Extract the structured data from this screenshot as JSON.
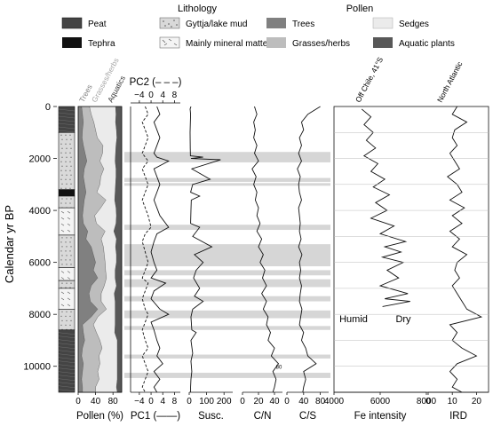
{
  "legend": {
    "lithology_title": "Lithology",
    "pollen_title": "Pollen",
    "lithology": [
      {
        "key": "peat",
        "label": "Peat"
      },
      {
        "key": "tephra",
        "label": "Tephra"
      },
      {
        "key": "gyttja",
        "label": "Gyttja/lake mud"
      },
      {
        "key": "mineral",
        "label": "Mainly mineral matter"
      }
    ],
    "pollen": [
      {
        "key": "trees",
        "label": "Trees",
        "color": "#808080"
      },
      {
        "key": "grasses",
        "label": "Grasses/herbs",
        "color": "#bdbdbd"
      },
      {
        "key": "sedges",
        "label": "Sedges",
        "color": "#ebebeb"
      },
      {
        "key": "aquatic",
        "label": "Aquatic plants",
        "color": "#585858"
      }
    ]
  },
  "y_axis_label": "Calendar yr BP",
  "highlight_bands": [
    [
      1750,
      2150
    ],
    [
      2750,
      2900
    ],
    [
      2950,
      3050
    ],
    [
      4550,
      4750
    ],
    [
      5300,
      6150
    ],
    [
      6300,
      6500
    ],
    [
      6650,
      6950
    ],
    [
      7300,
      7500
    ],
    [
      7850,
      8150
    ],
    [
      8450,
      8600
    ],
    [
      9550,
      9700
    ],
    [
      10250,
      10450
    ]
  ],
  "chart_data": [
    {
      "type": "area",
      "panel": "pollen",
      "xlabel": "Pollen (%)",
      "column_labels": [
        "Trees",
        "Grasses/herbs",
        "Aquatics"
      ],
      "x_ticks": [
        "0",
        "40",
        "80"
      ],
      "xlim": [
        0,
        100
      ],
      "ylim": [
        0,
        11000
      ],
      "y_ticks": [
        "0",
        "2000",
        "4000",
        "6000",
        "8000",
        "10000"
      ],
      "depth": [
        0,
        300,
        600,
        900,
        1200,
        1500,
        1800,
        2100,
        2400,
        2700,
        3000,
        3300,
        3600,
        3900,
        4200,
        4500,
        4800,
        5100,
        5400,
        5700,
        6000,
        6300,
        6600,
        6900,
        7200,
        7500,
        7800,
        8100,
        8400,
        8700,
        9000,
        9300,
        9600,
        9900,
        10200,
        10500,
        10800,
        11000
      ],
      "series": [
        {
          "name": "Trees",
          "values": [
            8,
            10,
            12,
            10,
            9,
            12,
            16,
            20,
            14,
            12,
            15,
            18,
            14,
            12,
            10,
            12,
            22,
            18,
            30,
            35,
            40,
            35,
            45,
            30,
            25,
            28,
            45,
            30,
            10,
            12,
            15,
            10,
            8,
            12,
            10,
            8,
            10,
            10
          ]
        },
        {
          "name": "Grasses/herbs",
          "values": [
            18,
            20,
            24,
            30,
            35,
            45,
            40,
            30,
            45,
            40,
            35,
            25,
            50,
            40,
            28,
            30,
            40,
            35,
            28,
            25,
            22,
            28,
            20,
            30,
            28,
            25,
            20,
            15,
            25,
            30,
            35,
            45,
            40,
            38,
            35,
            40,
            30,
            30
          ]
        },
        {
          "name": "Sedges",
          "values": [
            60,
            57,
            50,
            48,
            45,
            30,
            30,
            35,
            28,
            35,
            36,
            42,
            20,
            35,
            50,
            45,
            20,
            35,
            28,
            28,
            26,
            22,
            20,
            28,
            30,
            32,
            20,
            40,
            50,
            42,
            40,
            35,
            42,
            40,
            45,
            42,
            48,
            50
          ]
        },
        {
          "name": "Aquatics",
          "values": [
            14,
            13,
            14,
            12,
            11,
            13,
            14,
            15,
            13,
            13,
            14,
            15,
            16,
            13,
            12,
            13,
            18,
            12,
            14,
            12,
            12,
            15,
            15,
            12,
            17,
            15,
            15,
            15,
            15,
            16,
            10,
            10,
            10,
            10,
            10,
            10,
            12,
            10
          ]
        }
      ]
    },
    {
      "type": "line",
      "panel": "pc",
      "xlabel": "PC1 (——)",
      "top_label": "PC2 (– – –)",
      "x_ticks": [
        "−4",
        "0",
        "4",
        "8"
      ],
      "top_ticks": [
        "−4",
        "0",
        "4",
        "8"
      ],
      "xlim": [
        -7,
        10
      ],
      "series": [
        {
          "name": "PC1",
          "x": [
            2,
            3,
            1,
            2,
            3,
            2,
            1,
            2,
            6,
            1,
            2,
            3,
            2,
            1,
            2,
            3,
            6,
            2,
            1,
            0,
            1,
            2,
            0,
            5,
            1,
            0,
            3,
            6,
            0,
            1,
            2,
            3,
            2,
            4,
            1,
            3,
            1,
            2
          ],
          "y": [
            0,
            300,
            600,
            900,
            1200,
            1500,
            1800,
            1950,
            2100,
            2400,
            2700,
            3000,
            3300,
            3600,
            3900,
            4200,
            4650,
            4900,
            5200,
            5600,
            6000,
            6300,
            6600,
            6800,
            7100,
            7400,
            7800,
            8000,
            8300,
            8600,
            9000,
            9300,
            9600,
            9900,
            10200,
            10500,
            10800,
            11000
          ]
        },
        {
          "name": "PC2",
          "dashed": true,
          "x": [
            -2,
            -1,
            -3,
            -2,
            -1,
            -2,
            -3,
            -2,
            -1,
            -3,
            -2,
            -1,
            -2,
            -3,
            -2,
            -1,
            0,
            -2,
            -3,
            -2,
            -1,
            -2,
            -3,
            -1,
            -2,
            -3,
            -2,
            -1,
            -2,
            -3,
            -2,
            -1,
            -3,
            -2,
            -1,
            -2,
            -3,
            -2
          ],
          "y": [
            0,
            300,
            600,
            900,
            1200,
            1500,
            1800,
            1950,
            2100,
            2400,
            2700,
            3000,
            3300,
            3600,
            3900,
            4200,
            4650,
            4900,
            5200,
            5600,
            6000,
            6300,
            6600,
            6800,
            7100,
            7400,
            7800,
            8000,
            8300,
            8600,
            9000,
            9300,
            9600,
            9900,
            10200,
            10500,
            10800,
            11000
          ]
        }
      ]
    },
    {
      "type": "line",
      "panel": "susc",
      "xlabel": "Susc.",
      "x_ticks": [
        "0",
        "100",
        "200"
      ],
      "xlim": [
        0,
        250
      ],
      "series": [
        {
          "name": "Susc.",
          "x": [
            10,
            5,
            6,
            8,
            5,
            6,
            7,
            80,
            10,
            180,
            15,
            120,
            20,
            8,
            60,
            12,
            10,
            8,
            60,
            20,
            130,
            30,
            80,
            40,
            25,
            60,
            30,
            80,
            20,
            10,
            15,
            40,
            10,
            20,
            10,
            15,
            10,
            8,
            8
          ],
          "y": [
            0,
            100,
            150,
            300,
            1000,
            1600,
            1900,
            1950,
            2000,
            2050,
            2400,
            2800,
            3000,
            3300,
            3450,
            3600,
            4000,
            4500,
            4650,
            5000,
            5400,
            5700,
            6000,
            6300,
            6600,
            7000,
            7300,
            7500,
            7800,
            8100,
            8600,
            8700,
            9000,
            9500,
            9800,
            10200,
            10500,
            10800,
            11000
          ]
        }
      ]
    },
    {
      "type": "line",
      "panel": "cn",
      "xlabel": "C/N",
      "x_ticks": [
        "0",
        "20",
        "40"
      ],
      "xlim": [
        0,
        50
      ],
      "annotation": "80",
      "series": [
        {
          "name": "C/N",
          "x": [
            15,
            18,
            14,
            16,
            14,
            18,
            15,
            20,
            12,
            17,
            14,
            18,
            16,
            20,
            18,
            22,
            18,
            24,
            20,
            26,
            22,
            28,
            25,
            30,
            24,
            30,
            26,
            32,
            30,
            35,
            32,
            40,
            36,
            45,
            38,
            42,
            40,
            38
          ],
          "y": [
            0,
            300,
            600,
            900,
            1200,
            1500,
            1800,
            2100,
            2400,
            2700,
            3000,
            3300,
            3600,
            3900,
            4200,
            4500,
            4800,
            5100,
            5400,
            5700,
            6000,
            6300,
            6600,
            6900,
            7200,
            7500,
            7800,
            8100,
            8400,
            8700,
            9000,
            9300,
            9600,
            9900,
            10200,
            10500,
            10800,
            11000
          ]
        }
      ]
    },
    {
      "type": "line",
      "panel": "cs",
      "xlabel": "C/S",
      "x_ticks": [
        "0",
        "40",
        "80"
      ],
      "xlim": [
        0,
        100
      ],
      "series": [
        {
          "name": "C/S",
          "x": [
            80,
            50,
            35,
            40,
            30,
            35,
            28,
            35,
            25,
            32,
            28,
            30,
            35,
            28,
            30,
            32,
            30,
            34,
            28,
            36,
            30,
            33,
            30,
            35,
            32,
            30,
            36,
            33,
            30,
            40,
            35,
            45,
            50,
            70,
            40,
            45,
            40,
            38
          ],
          "y": [
            0,
            300,
            600,
            900,
            1200,
            1500,
            1800,
            2100,
            2400,
            2700,
            3000,
            3300,
            3600,
            3900,
            4200,
            4500,
            4800,
            5100,
            5400,
            5700,
            6000,
            6300,
            6600,
            6900,
            7200,
            7500,
            7800,
            8100,
            8400,
            8700,
            9000,
            9300,
            9600,
            9900,
            10200,
            10500,
            10800,
            11000
          ]
        }
      ]
    },
    {
      "type": "line",
      "panel": "fe",
      "xlabel": "Fe intensity",
      "column_label": "Off Chile, 41°S",
      "x_ticks": [
        "4000",
        "6000",
        "8000"
      ],
      "xlim": [
        4000,
        8000
      ],
      "annotations": [
        "Humid",
        "Dry"
      ],
      "series": [
        {
          "name": "Fe intensity",
          "x": [
            5200,
            5600,
            5300,
            5700,
            5400,
            5800,
            5300,
            5900,
            5600,
            6200,
            5700,
            6400,
            5800,
            6300,
            5600,
            6600,
            6000,
            7100,
            6200,
            6900,
            6100,
            7000,
            6300,
            6800,
            6000,
            7200,
            6200,
            7300,
            6100
          ],
          "y": [
            100,
            400,
            700,
            1000,
            1300,
            1600,
            1900,
            2200,
            2500,
            2800,
            3100,
            3400,
            3700,
            4000,
            4300,
            4600,
            4900,
            5200,
            5400,
            5600,
            5800,
            6000,
            6300,
            6600,
            6900,
            7200,
            7400,
            7500,
            7700
          ]
        }
      ]
    },
    {
      "type": "line",
      "panel": "ird",
      "xlabel": "IRD",
      "column_label": "North Atlantic",
      "x_ticks": [
        "0",
        "10",
        "20"
      ],
      "xlim": [
        0,
        25
      ],
      "series": [
        {
          "name": "IRD",
          "x": [
            12,
            10,
            16,
            11,
            10,
            12,
            9,
            11,
            13,
            8,
            12,
            14,
            9,
            15,
            10,
            14,
            9,
            13,
            10,
            16,
            12,
            11,
            13,
            10,
            12,
            14,
            16,
            22,
            9,
            12,
            10,
            14,
            20,
            12,
            9,
            12,
            10,
            14
          ],
          "y": [
            0,
            300,
            600,
            900,
            1200,
            1500,
            1800,
            2100,
            2400,
            2700,
            3000,
            3300,
            3600,
            3900,
            4200,
            4500,
            4800,
            5100,
            5400,
            5700,
            6000,
            6300,
            6600,
            6900,
            7200,
            7500,
            7800,
            8100,
            8400,
            8700,
            9000,
            9300,
            9600,
            9900,
            10200,
            10500,
            10800,
            11000
          ]
        }
      ]
    }
  ]
}
